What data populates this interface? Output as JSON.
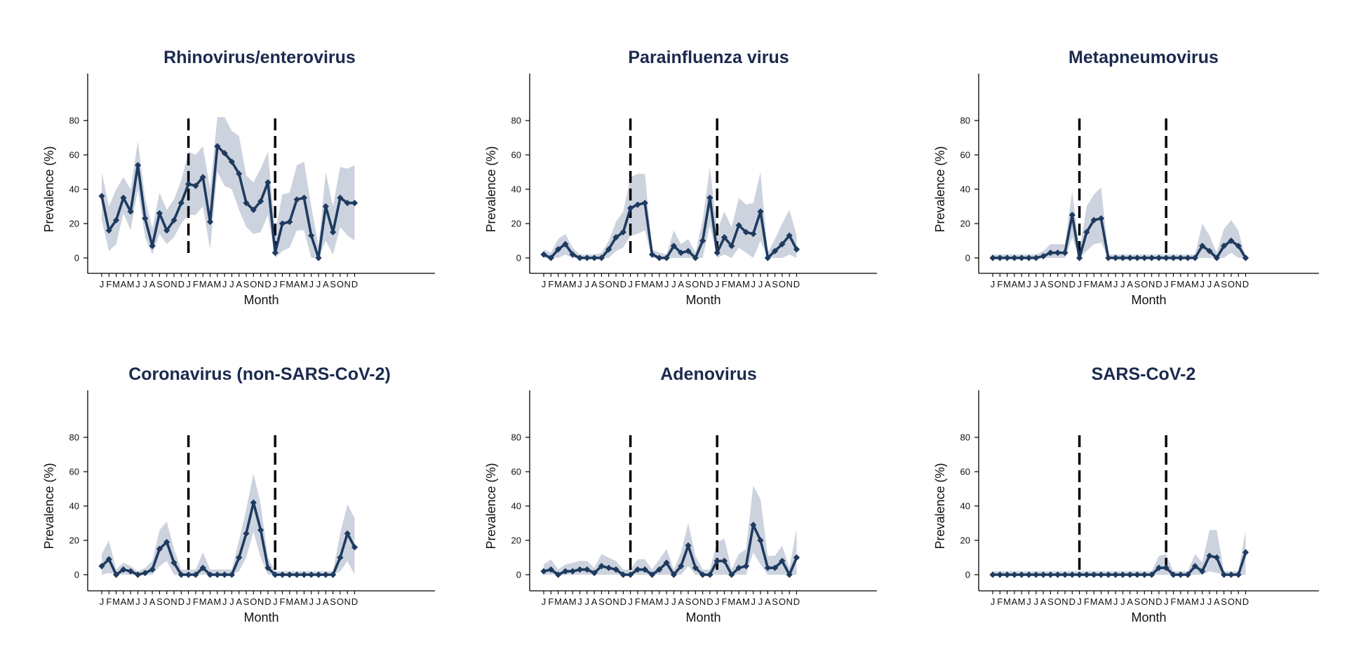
{
  "figure": {
    "panels": [
      {
        "title": "Rhinovirus/enterovirus"
      },
      {
        "title": "Parainfluenza virus"
      },
      {
        "title": "Metapneumovirus"
      },
      {
        "title": "Coronavirus (non-SARS-CoV-2)"
      },
      {
        "title": "Adenovirus"
      },
      {
        "title": "SARS-CoV-2"
      }
    ]
  },
  "colors": {
    "line": "#1e3a5f",
    "band": "#ccd3de",
    "divider": "#000000",
    "title": "#1b2a4e"
  },
  "chart_data": [
    {
      "type": "line",
      "title": "Rhinovirus/enterovirus",
      "xlabel": "Month",
      "ylabel": "Prevalence (%)",
      "x": [
        "J",
        "F",
        "M",
        "A",
        "M",
        "J",
        "J",
        "A",
        "S",
        "O",
        "N",
        "D",
        "J",
        "F",
        "M",
        "A",
        "M",
        "J",
        "J",
        "A",
        "S",
        "O",
        "N",
        "D",
        "J",
        "F",
        "M",
        "A",
        "M",
        "J",
        "J",
        "A",
        "S",
        "O",
        "N",
        "D"
      ],
      "yticks": [
        0,
        20,
        40,
        60,
        80
      ],
      "ylim": [
        -8,
        108
      ],
      "dividers_at_x_index": [
        12,
        24
      ],
      "series": [
        {
          "values": [
            36,
            16,
            22,
            35,
            27,
            54,
            23,
            7,
            26,
            16,
            22,
            32,
            43,
            42,
            47,
            21,
            65,
            61,
            56,
            49,
            32,
            28,
            33,
            44,
            3,
            20,
            21,
            34,
            35,
            13,
            0,
            30,
            15,
            35,
            32,
            32
          ],
          "ci_lower": [
            22,
            4,
            8,
            26,
            16,
            40,
            12,
            2,
            14,
            8,
            12,
            20,
            25,
            25,
            30,
            5,
            50,
            42,
            40,
            28,
            18,
            14,
            15,
            25,
            0,
            4,
            6,
            16,
            16,
            0,
            0,
            10,
            2,
            18,
            13,
            10
          ],
          "ci_upper": [
            50,
            30,
            40,
            47,
            40,
            68,
            35,
            17,
            38,
            28,
            34,
            45,
            62,
            60,
            65,
            40,
            82,
            82,
            74,
            71,
            48,
            44,
            52,
            62,
            15,
            37,
            38,
            54,
            56,
            30,
            7,
            50,
            30,
            53,
            52,
            54
          ]
        }
      ]
    },
    {
      "type": "line",
      "title": "Parainfluenza virus",
      "xlabel": "Month",
      "ylabel": "Prevalence (%)",
      "x": [
        "J",
        "F",
        "M",
        "A",
        "M",
        "J",
        "J",
        "A",
        "S",
        "O",
        "N",
        "D",
        "J",
        "F",
        "M",
        "A",
        "M",
        "J",
        "J",
        "A",
        "S",
        "O",
        "N",
        "D",
        "J",
        "F",
        "M",
        "A",
        "M",
        "J",
        "J",
        "A",
        "S",
        "O",
        "N",
        "D"
      ],
      "yticks": [
        0,
        20,
        40,
        60,
        80
      ],
      "ylim": [
        -8,
        108
      ],
      "dividers_at_x_index": [
        12,
        24
      ],
      "series": [
        {
          "values": [
            2,
            0,
            5,
            8,
            2,
            0,
            0,
            0,
            0,
            5,
            12,
            15,
            29,
            31,
            32,
            2,
            0,
            0,
            7,
            3,
            4,
            0,
            10,
            35,
            3,
            12,
            7,
            19,
            15,
            14,
            27,
            0,
            4,
            8,
            13,
            5
          ],
          "ci_lower": [
            0,
            0,
            0,
            2,
            0,
            0,
            0,
            0,
            0,
            0,
            4,
            6,
            13,
            14,
            16,
            0,
            0,
            0,
            0,
            0,
            0,
            0,
            0,
            19,
            0,
            2,
            0,
            6,
            3,
            0,
            10,
            0,
            0,
            0,
            2,
            0
          ],
          "ci_upper": [
            5,
            3,
            11,
            14,
            6,
            2,
            2,
            2,
            3,
            10,
            21,
            27,
            47,
            49,
            49,
            5,
            3,
            2,
            16,
            8,
            11,
            3,
            22,
            53,
            16,
            27,
            18,
            35,
            31,
            32,
            50,
            3,
            11,
            20,
            28,
            13
          ]
        }
      ]
    },
    {
      "type": "line",
      "title": "Metapneumovirus",
      "xlabel": "Month",
      "ylabel": "Prevalence (%)",
      "x": [
        "J",
        "F",
        "M",
        "A",
        "M",
        "J",
        "J",
        "A",
        "S",
        "O",
        "N",
        "D",
        "J",
        "F",
        "M",
        "A",
        "M",
        "J",
        "J",
        "A",
        "S",
        "O",
        "N",
        "D",
        "J",
        "F",
        "M",
        "A",
        "M",
        "J",
        "J",
        "A",
        "S",
        "O",
        "N",
        "D"
      ],
      "yticks": [
        0,
        20,
        40,
        60,
        80
      ],
      "ylim": [
        -8,
        108
      ],
      "dividers_at_x_index": [
        12,
        24
      ],
      "series": [
        {
          "values": [
            0,
            0,
            0,
            0,
            0,
            0,
            0,
            1,
            3,
            3,
            3,
            25,
            0,
            15,
            22,
            23,
            0,
            0,
            0,
            0,
            0,
            0,
            0,
            0,
            0,
            0,
            0,
            0,
            0,
            7,
            4,
            0,
            7,
            10,
            7,
            0
          ],
          "ci_lower": [
            0,
            0,
            0,
            0,
            0,
            0,
            0,
            0,
            0,
            0,
            0,
            12,
            0,
            4,
            8,
            9,
            0,
            0,
            0,
            0,
            0,
            0,
            0,
            0,
            0,
            0,
            0,
            0,
            0,
            0,
            0,
            0,
            0,
            3,
            0,
            0
          ],
          "ci_upper": [
            2,
            2,
            2,
            2,
            2,
            2,
            2,
            4,
            8,
            8,
            8,
            39,
            4,
            30,
            37,
            41,
            2,
            2,
            2,
            2,
            2,
            2,
            2,
            2,
            2,
            2,
            2,
            2,
            2,
            20,
            13,
            3,
            17,
            22,
            16,
            0
          ]
        }
      ]
    },
    {
      "type": "line",
      "title": "Coronavirus (non-SARS-CoV-2)",
      "xlabel": "Month",
      "ylabel": "Prevalence (%)",
      "x": [
        "J",
        "F",
        "M",
        "A",
        "M",
        "J",
        "J",
        "A",
        "S",
        "O",
        "N",
        "D",
        "J",
        "F",
        "M",
        "A",
        "M",
        "J",
        "J",
        "A",
        "S",
        "O",
        "N",
        "D",
        "J",
        "F",
        "M",
        "A",
        "M",
        "J",
        "J",
        "A",
        "S",
        "O",
        "N",
        "D"
      ],
      "yticks": [
        0,
        20,
        40,
        60,
        80
      ],
      "ylim": [
        -8,
        108
      ],
      "dividers_at_x_index": [
        12,
        24
      ],
      "series": [
        {
          "values": [
            5,
            9,
            0,
            3,
            2,
            0,
            1,
            3,
            15,
            19,
            7,
            0,
            0,
            0,
            4,
            0,
            0,
            0,
            0,
            10,
            24,
            42,
            26,
            4,
            0,
            0,
            0,
            0,
            0,
            0,
            0,
            0,
            0,
            10,
            24,
            16
          ],
          "ci_lower": [
            0,
            1,
            0,
            0,
            0,
            0,
            0,
            0,
            5,
            8,
            0,
            0,
            0,
            0,
            0,
            0,
            0,
            0,
            0,
            2,
            10,
            25,
            10,
            0,
            0,
            0,
            0,
            0,
            0,
            0,
            0,
            0,
            0,
            2,
            8,
            0
          ],
          "ci_upper": [
            12,
            20,
            3,
            7,
            5,
            2,
            4,
            8,
            26,
            31,
            15,
            3,
            3,
            3,
            13,
            3,
            3,
            3,
            3,
            20,
            38,
            59,
            41,
            10,
            2,
            2,
            2,
            2,
            2,
            2,
            2,
            2,
            2,
            24,
            41,
            33
          ]
        }
      ]
    },
    {
      "type": "line",
      "title": "Adenovirus",
      "xlabel": "Month",
      "ylabel": "Prevalence (%)",
      "x": [
        "J",
        "F",
        "M",
        "A",
        "M",
        "J",
        "J",
        "A",
        "S",
        "O",
        "N",
        "D",
        "J",
        "F",
        "M",
        "A",
        "M",
        "J",
        "J",
        "A",
        "S",
        "O",
        "N",
        "D",
        "J",
        "F",
        "M",
        "A",
        "M",
        "J",
        "J",
        "A",
        "S",
        "O",
        "N",
        "D"
      ],
      "yticks": [
        0,
        20,
        40,
        60,
        80
      ],
      "ylim": [
        -8,
        108
      ],
      "dividers_at_x_index": [
        12,
        24
      ],
      "series": [
        {
          "values": [
            2,
            3,
            0,
            2,
            2,
            3,
            3,
            1,
            5,
            4,
            3,
            0,
            0,
            3,
            3,
            0,
            3,
            7,
            0,
            5,
            17,
            4,
            0,
            0,
            8,
            8,
            0,
            4,
            5,
            29,
            20,
            4,
            4,
            8,
            0,
            10
          ],
          "ci_lower": [
            0,
            0,
            0,
            0,
            0,
            0,
            0,
            0,
            0,
            0,
            0,
            0,
            0,
            0,
            0,
            0,
            0,
            0,
            0,
            0,
            5,
            0,
            0,
            0,
            0,
            0,
            0,
            0,
            0,
            13,
            6,
            0,
            0,
            0,
            0,
            0
          ],
          "ci_upper": [
            6,
            9,
            3,
            6,
            7,
            8,
            8,
            4,
            12,
            10,
            8,
            3,
            3,
            9,
            9,
            3,
            9,
            15,
            3,
            13,
            30,
            11,
            3,
            3,
            19,
            21,
            3,
            12,
            15,
            52,
            44,
            11,
            11,
            17,
            4,
            27
          ]
        }
      ]
    },
    {
      "type": "line",
      "title": "SARS-CoV-2",
      "xlabel": "Month",
      "ylabel": "Prevalence (%)",
      "x": [
        "J",
        "F",
        "M",
        "A",
        "M",
        "J",
        "J",
        "A",
        "S",
        "O",
        "N",
        "D",
        "J",
        "F",
        "M",
        "A",
        "M",
        "J",
        "J",
        "A",
        "S",
        "O",
        "N",
        "D",
        "J",
        "F",
        "M",
        "A",
        "M",
        "J",
        "J",
        "A",
        "S",
        "O",
        "N",
        "D"
      ],
      "yticks": [
        0,
        20,
        40,
        60,
        80
      ],
      "ylim": [
        -8,
        108
      ],
      "dividers_at_x_index": [
        12,
        24
      ],
      "series": [
        {
          "values": [
            0,
            0,
            0,
            0,
            0,
            0,
            0,
            0,
            0,
            0,
            0,
            0,
            0,
            0,
            0,
            0,
            0,
            0,
            0,
            0,
            0,
            0,
            0,
            4,
            4,
            0,
            0,
            0,
            5,
            2,
            11,
            10,
            0,
            0,
            0,
            13
          ],
          "ci_lower": [
            0,
            0,
            0,
            0,
            0,
            0,
            0,
            0,
            0,
            0,
            0,
            0,
            0,
            0,
            0,
            0,
            0,
            0,
            0,
            0,
            0,
            0,
            0,
            0,
            0,
            0,
            0,
            0,
            0,
            0,
            2,
            1,
            0,
            0,
            0,
            0
          ],
          "ci_upper": [
            2,
            2,
            2,
            2,
            2,
            2,
            2,
            2,
            2,
            2,
            2,
            2,
            2,
            2,
            2,
            2,
            2,
            2,
            2,
            2,
            2,
            2,
            2,
            11,
            12,
            2,
            2,
            2,
            12,
            7,
            26,
            26,
            2,
            2,
            2,
            26
          ]
        }
      ]
    }
  ]
}
